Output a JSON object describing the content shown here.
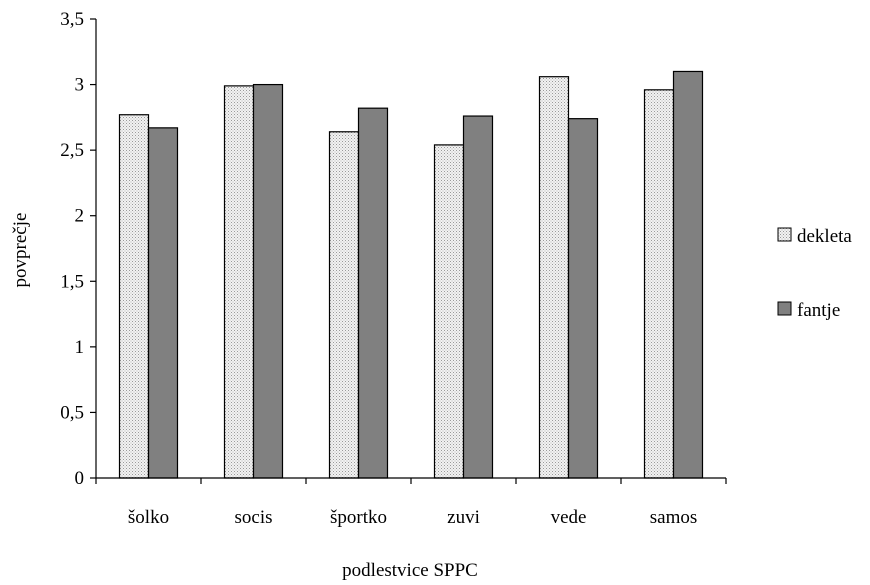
{
  "chart_data": {
    "type": "bar",
    "categories": [
      "šolko",
      "socis",
      "športko",
      "zuvi",
      "vede",
      "samos"
    ],
    "series": [
      {
        "name": "dekleta",
        "values": [
          2.77,
          2.99,
          2.64,
          2.54,
          3.06,
          2.96
        ],
        "color": "#e8e8e8",
        "pattern": "dotted"
      },
      {
        "name": "fantje",
        "values": [
          2.67,
          3.0,
          2.82,
          2.76,
          2.74,
          3.1
        ],
        "color": "#7f7f7f",
        "pattern": "solid"
      }
    ],
    "xlabel": "podlestvice SPPC",
    "ylabel": "povprečje",
    "ylim": [
      0,
      3.5
    ],
    "yticks": [
      0,
      0.5,
      1,
      1.5,
      2,
      2.5,
      3,
      3.5
    ],
    "ytick_labels": [
      "0",
      "0,5",
      "1",
      "1,5",
      "2",
      "2,5",
      "3",
      "3,5"
    ],
    "grid": false,
    "legend_position": "right"
  }
}
